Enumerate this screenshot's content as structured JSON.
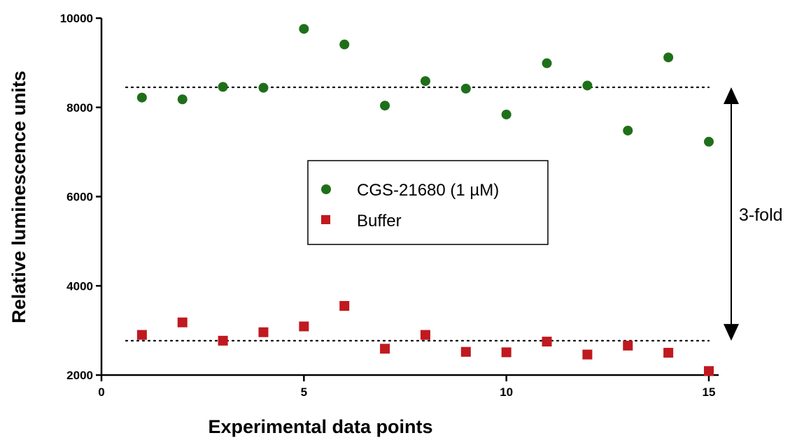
{
  "chart_data": {
    "type": "scatter",
    "title": "",
    "xlabel": "Experimental data points",
    "ylabel": "Relative luminescence units",
    "xlim": [
      0,
      15
    ],
    "ylim": [
      2000,
      10000
    ],
    "xticks": [
      0,
      5,
      10,
      15
    ],
    "yticks": [
      2000,
      4000,
      6000,
      8000,
      10000
    ],
    "grid": false,
    "legend_position": "center",
    "series": [
      {
        "name": "CGS-21680 (1 µM)",
        "marker": "circle",
        "color": "#1f6f1a",
        "mean": 8450,
        "x": [
          1,
          2,
          3,
          4,
          5,
          6,
          7,
          8,
          9,
          10,
          11,
          12,
          13,
          14,
          15
        ],
        "y": [
          8220,
          8180,
          8460,
          8440,
          9760,
          9410,
          8040,
          8590,
          8420,
          7840,
          8990,
          8490,
          7480,
          9120,
          7230
        ]
      },
      {
        "name": "Buffer",
        "marker": "square",
        "color": "#c0191f",
        "mean": 2770,
        "x": [
          1,
          2,
          3,
          4,
          5,
          6,
          7,
          8,
          9,
          10,
          11,
          12,
          13,
          14,
          15
        ],
        "y": [
          2900,
          3180,
          2770,
          2960,
          3090,
          3550,
          2590,
          2900,
          2520,
          2510,
          2750,
          2460,
          2660,
          2500,
          2090
        ]
      }
    ],
    "annotations": [
      {
        "text": "3-fold",
        "type": "double-arrow",
        "from": 8450,
        "to": 2770
      }
    ]
  }
}
